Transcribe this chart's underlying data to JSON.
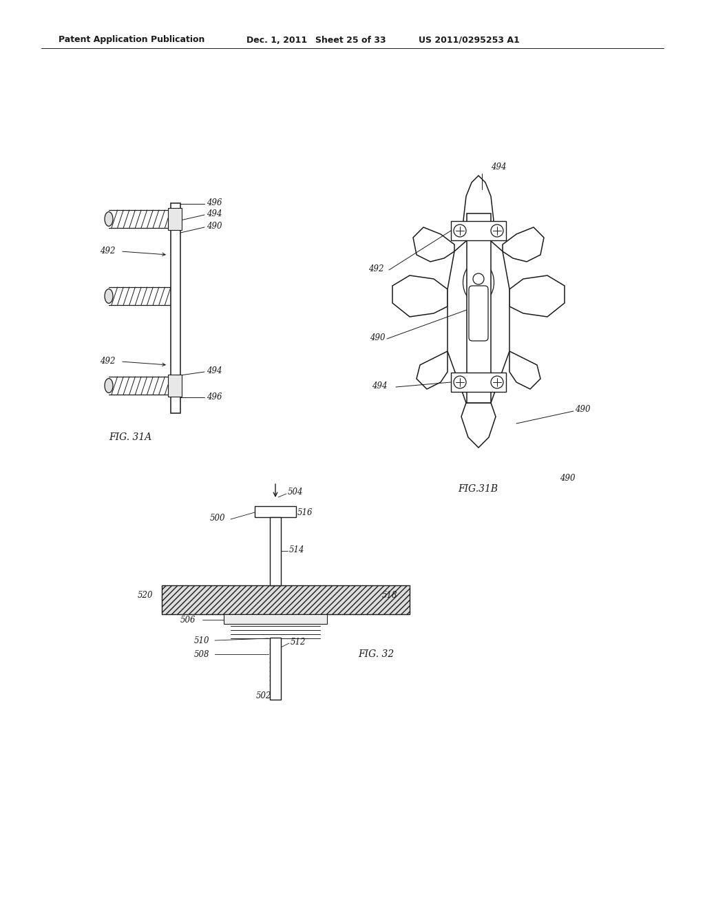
{
  "bg_color": "#ffffff",
  "header_text": "Patent Application Publication",
  "header_date": "Dec. 1, 2011",
  "header_sheet": "Sheet 25 of 33",
  "header_patent": "US 2011/0295253 A1",
  "fig31a_label": "FIG. 31A",
  "fig31b_label": "FIG.31B",
  "fig32_label": "FIG. 32",
  "text_color": "#1a1a1a",
  "line_color": "#1a1a1a"
}
